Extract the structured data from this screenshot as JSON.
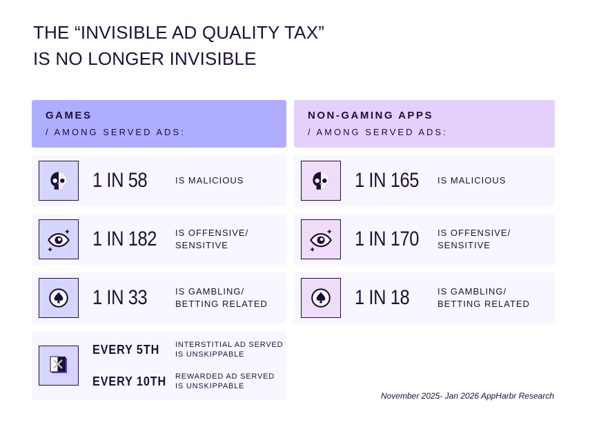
{
  "title": {
    "line1": "THE “INVISIBLE AD QUALITY TAX”",
    "line2": "IS NO LONGER INVISIBLE"
  },
  "games": {
    "heading": "GAMES",
    "sub": "/ AMONG SERVED ADS:",
    "stats": [
      {
        "icon": "skull-icon",
        "value": "1 IN 58",
        "desc1": "IS MALICIOUS",
        "desc2": ""
      },
      {
        "icon": "eye-icon",
        "value": "1 IN 182",
        "desc1": "IS OFFENSIVE/",
        "desc2": "SENSITIVE"
      },
      {
        "icon": "spade-coin-icon",
        "value": "1 IN 33",
        "desc1": "IS GAMBLING/",
        "desc2": "BETTING RELATED"
      }
    ],
    "skip": {
      "icon": "close-ad-icon",
      "rows": [
        {
          "value": "EVERY 5TH",
          "desc1": "INTERSTITIAL AD SERVED",
          "desc2": "IS UNSKIPPABLE"
        },
        {
          "value": "EVERY 10TH",
          "desc1": "REWARDED AD SERVED",
          "desc2": "IS UNSKIPPABLE"
        }
      ]
    }
  },
  "nongaming": {
    "heading": "NON-GAMING APPS",
    "sub": "/ AMONG SERVED ADS:",
    "stats": [
      {
        "icon": "skull-icon",
        "value": "1 IN 165",
        "desc1": "IS MALICIOUS",
        "desc2": ""
      },
      {
        "icon": "eye-icon",
        "value": "1 IN 170",
        "desc1": "IS OFFENSIVE/",
        "desc2": "SENSITIVE"
      },
      {
        "icon": "spade-coin-icon",
        "value": "1 IN 18",
        "desc1": "IS GAMBLING/",
        "desc2": "BETTING RELATED"
      }
    ]
  },
  "source": "November 2025- Jan 2026 AppHarbr Research"
}
